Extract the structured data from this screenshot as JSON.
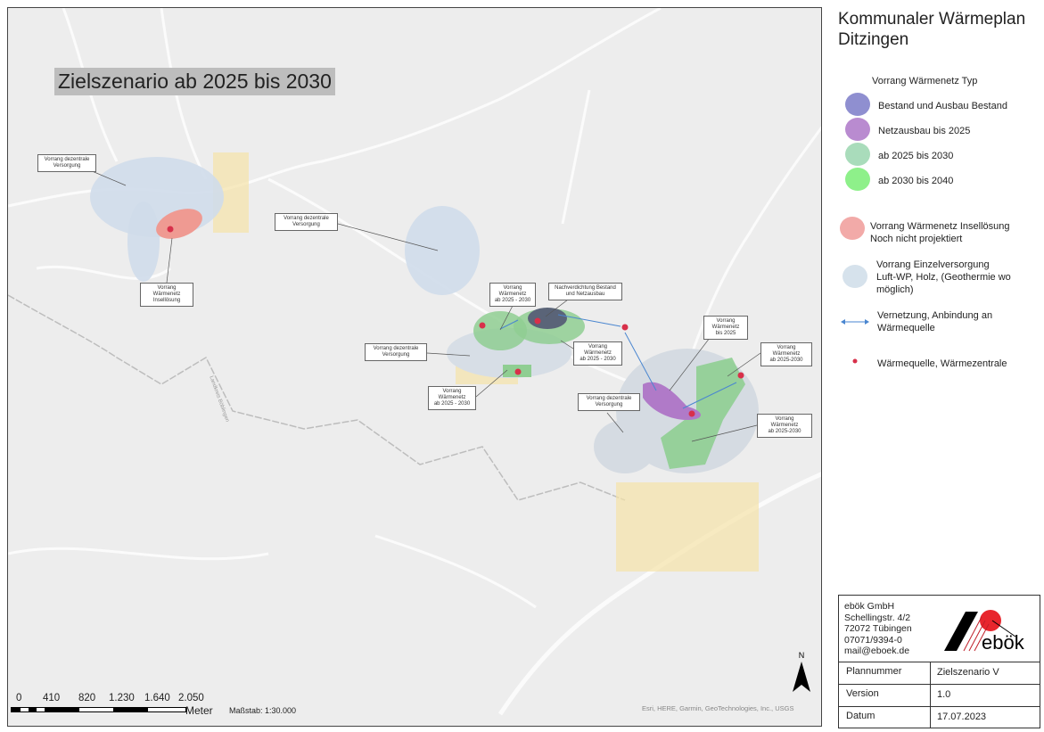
{
  "map": {
    "scenario_title": "Zielszenario ab 2025 bis 2030",
    "boundary_label": "Landkreis Böblingen",
    "callouts": [
      {
        "text": "Vorrang dezentrale\nVersorgung"
      },
      {
        "text": "Vorrang Wärmenetz\nInsellösung"
      },
      {
        "text": "Vorrang dezentrale\nVersorgung"
      },
      {
        "text": "Vorrang\nWärmenetz\nab 2025 - 2030"
      },
      {
        "text": "Nachverdichtung Bestand\nund Netzausbau"
      },
      {
        "text": "Vorrang dezentrale\nVersorgung"
      },
      {
        "text": "Vorrang\nWärmenetz\nab 2025 - 2030"
      },
      {
        "text": "Vorrang\nWärmenetz\nab 2025 - 2030"
      },
      {
        "text": "Vorrang\nWärmenetz\nbis 2025"
      },
      {
        "text": "Vorrang\nWärmenetz\nab 2025-2030"
      },
      {
        "text": "Vorrang dezentrale\nVersorgung"
      },
      {
        "text": "Vorrang\nWärmenetz\nab 2025-2030"
      }
    ],
    "scale": {
      "ticks": [
        "0",
        "410",
        "820",
        "1.230",
        "1.640",
        "2.050"
      ],
      "unit": "Meter",
      "ratio": "Maßstab: 1:30.000"
    },
    "attribution": "Esri, HERE, Garmin, GeoTechnologies, Inc., USGS",
    "north_label": "N"
  },
  "panel": {
    "title": "Kommunaler Wärmeplan\nDitzingen",
    "legend_heading": "Vorrang Wärmenetz Typ",
    "legend": [
      {
        "label": "Bestand und Ausbau Bestand",
        "color": "#8f8fd0"
      },
      {
        "label": "Netzausbau bis 2025",
        "color": "#b98bd0"
      },
      {
        "label": "ab 2025 bis 2030",
        "color": "#a9dcbb"
      },
      {
        "label": "ab 2030 bis 2040",
        "color": "#8ef08a"
      },
      {
        "label": "Vorrang Wärmenetz Insellösung\nNoch nicht projektiert",
        "color": "#f2aaa8"
      },
      {
        "label": "Vorrang Einzelversorgung\nLuft-WP, Holz, (Geothermie wo\nmöglich)",
        "color": "#d6e2ec"
      },
      {
        "label": "Vernetzung, Anbindung an\nWärmequelle",
        "color": "#4a86d0"
      },
      {
        "label": "Wärmequelle, Wärmezentrale",
        "color": "#d8304a"
      }
    ]
  },
  "infobox": {
    "company": "ebök GmbH",
    "street": "Schellingstr. 4/2",
    "city": "72072 Tübingen",
    "phone": "07071/9394-0",
    "email": "mail@eboek.de",
    "logo_text": "ebök",
    "rows": [
      {
        "key": "Plannummer",
        "value": "Zielszenario V"
      },
      {
        "key": "Version",
        "value": "1.0"
      },
      {
        "key": "Datum",
        "value": "17.07.2023"
      }
    ]
  }
}
